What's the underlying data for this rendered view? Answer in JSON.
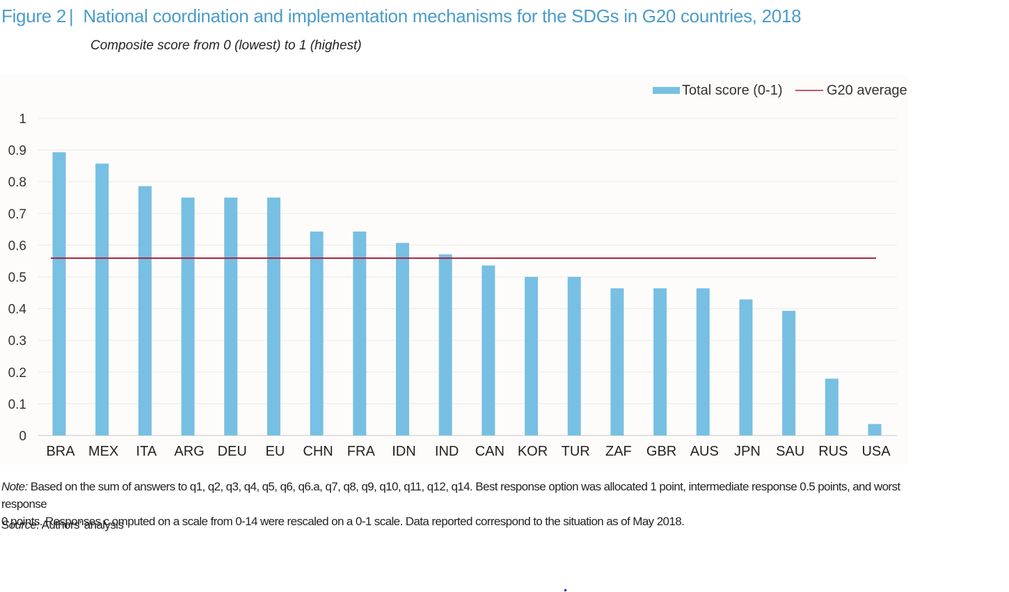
{
  "figure": {
    "number": "Figure 2",
    "separator": "|",
    "title": "National coordination and implementation mechanisms for the SDGs in G20 countries, 2018",
    "subtitle": "Composite score from 0 (lowest) to 1 (highest)",
    "note_label": "Note:",
    "note_text_line1": " Based on the sum of answers to q1, q2, q3, q4, q5, q6, q6.a, q7, q8, q9, q10, q11, q12, q14. Best response option was allocated 1 point, intermediate response 0.5 points, and worst response",
    "note_text_line2": "0 points. Responses c omputed on a scale from 0-14 were rescaled on a 0-1 scale. Data reported correspond to the situation as of May 2018.",
    "source_label": "Source:",
    "source_text": " Authors' analysis"
  },
  "colors": {
    "title": "#4a9cc9",
    "bar": "#77c0e3",
    "average_line": "#a3233a",
    "grid": "#ebebeb",
    "text": "#222222"
  },
  "chart_data": {
    "type": "bar",
    "title": "National coordination and implementation mechanisms for the SDGs in G20 countries, 2018",
    "subtitle": "Composite score from 0 (lowest) to 1 (highest)",
    "xlabel": "",
    "ylabel": "",
    "ylim": [
      0,
      1
    ],
    "yticks": [
      0,
      0.1,
      0.2,
      0.3,
      0.4,
      0.5,
      0.6,
      0.7,
      0.8,
      0.9,
      1
    ],
    "ytick_labels": [
      "0",
      "0.1",
      "0.2",
      "0.3",
      "0.4",
      "0.5",
      "0.6",
      "0.7",
      "0.8",
      "0.9",
      "1"
    ],
    "grid": true,
    "legend_position": "top-right",
    "categories": [
      "BRA",
      "MEX",
      "ITA",
      "ARG",
      "DEU",
      "EU",
      "CHN",
      "FRA",
      "IDN",
      "IND",
      "CAN",
      "KOR",
      "TUR",
      "ZAF",
      "GBR",
      "AUS",
      "JPN",
      "SAU",
      "RUS",
      "USA"
    ],
    "series": [
      {
        "name": "Total score (0-1)",
        "type": "bar",
        "values": [
          0.893,
          0.857,
          0.786,
          0.75,
          0.75,
          0.75,
          0.643,
          0.643,
          0.607,
          0.571,
          0.536,
          0.5,
          0.5,
          0.464,
          0.464,
          0.464,
          0.429,
          0.393,
          0.179,
          0.036
        ]
      },
      {
        "name": "G20 average",
        "type": "line",
        "value": 0.559
      }
    ]
  }
}
